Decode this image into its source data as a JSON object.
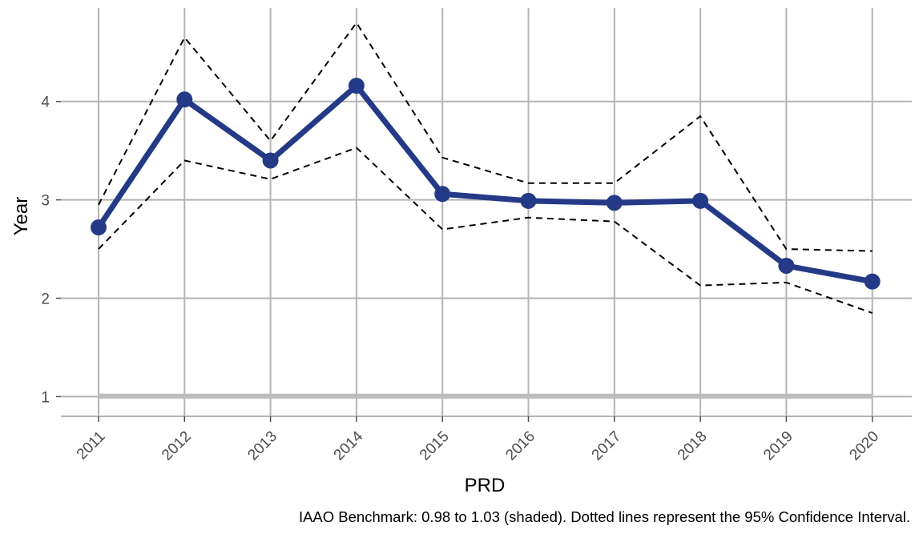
{
  "chart_data": {
    "type": "line",
    "title": "",
    "xlabel": "PRD",
    "ylabel": "Year",
    "caption": "IAAO Benchmark: 0.98 to 1.03 (shaded). Dotted lines represent the 95% Confidence Interval.",
    "x": [
      "2011",
      "2012",
      "2013",
      "2014",
      "2015",
      "2016",
      "2017",
      "2018",
      "2019",
      "2020"
    ],
    "y_ticks": [
      1,
      2,
      3,
      4
    ],
    "y_tick_labels": [
      "1",
      "2",
      "3",
      "4"
    ],
    "ylim": [
      0.8,
      4.95
    ],
    "grid": true,
    "legend": "none",
    "benchmark_band": {
      "low": 0.98,
      "high": 1.03,
      "color": "#bdbdbd"
    },
    "series": [
      {
        "role": "estimate",
        "values": [
          2.72,
          4.02,
          3.4,
          4.16,
          3.06,
          2.99,
          2.97,
          2.99,
          2.33,
          2.17
        ],
        "color": "#253a87",
        "style": "solid"
      },
      {
        "role": "upper-ci",
        "values": [
          2.95,
          4.65,
          3.6,
          4.8,
          3.43,
          3.17,
          3.17,
          3.85,
          2.5,
          2.48
        ],
        "color": "#000000",
        "style": "dashed"
      },
      {
        "role": "lower-ci",
        "values": [
          2.5,
          3.4,
          3.21,
          3.53,
          2.7,
          2.82,
          2.78,
          2.13,
          2.16,
          1.85
        ],
        "color": "#000000",
        "style": "dashed"
      }
    ]
  }
}
